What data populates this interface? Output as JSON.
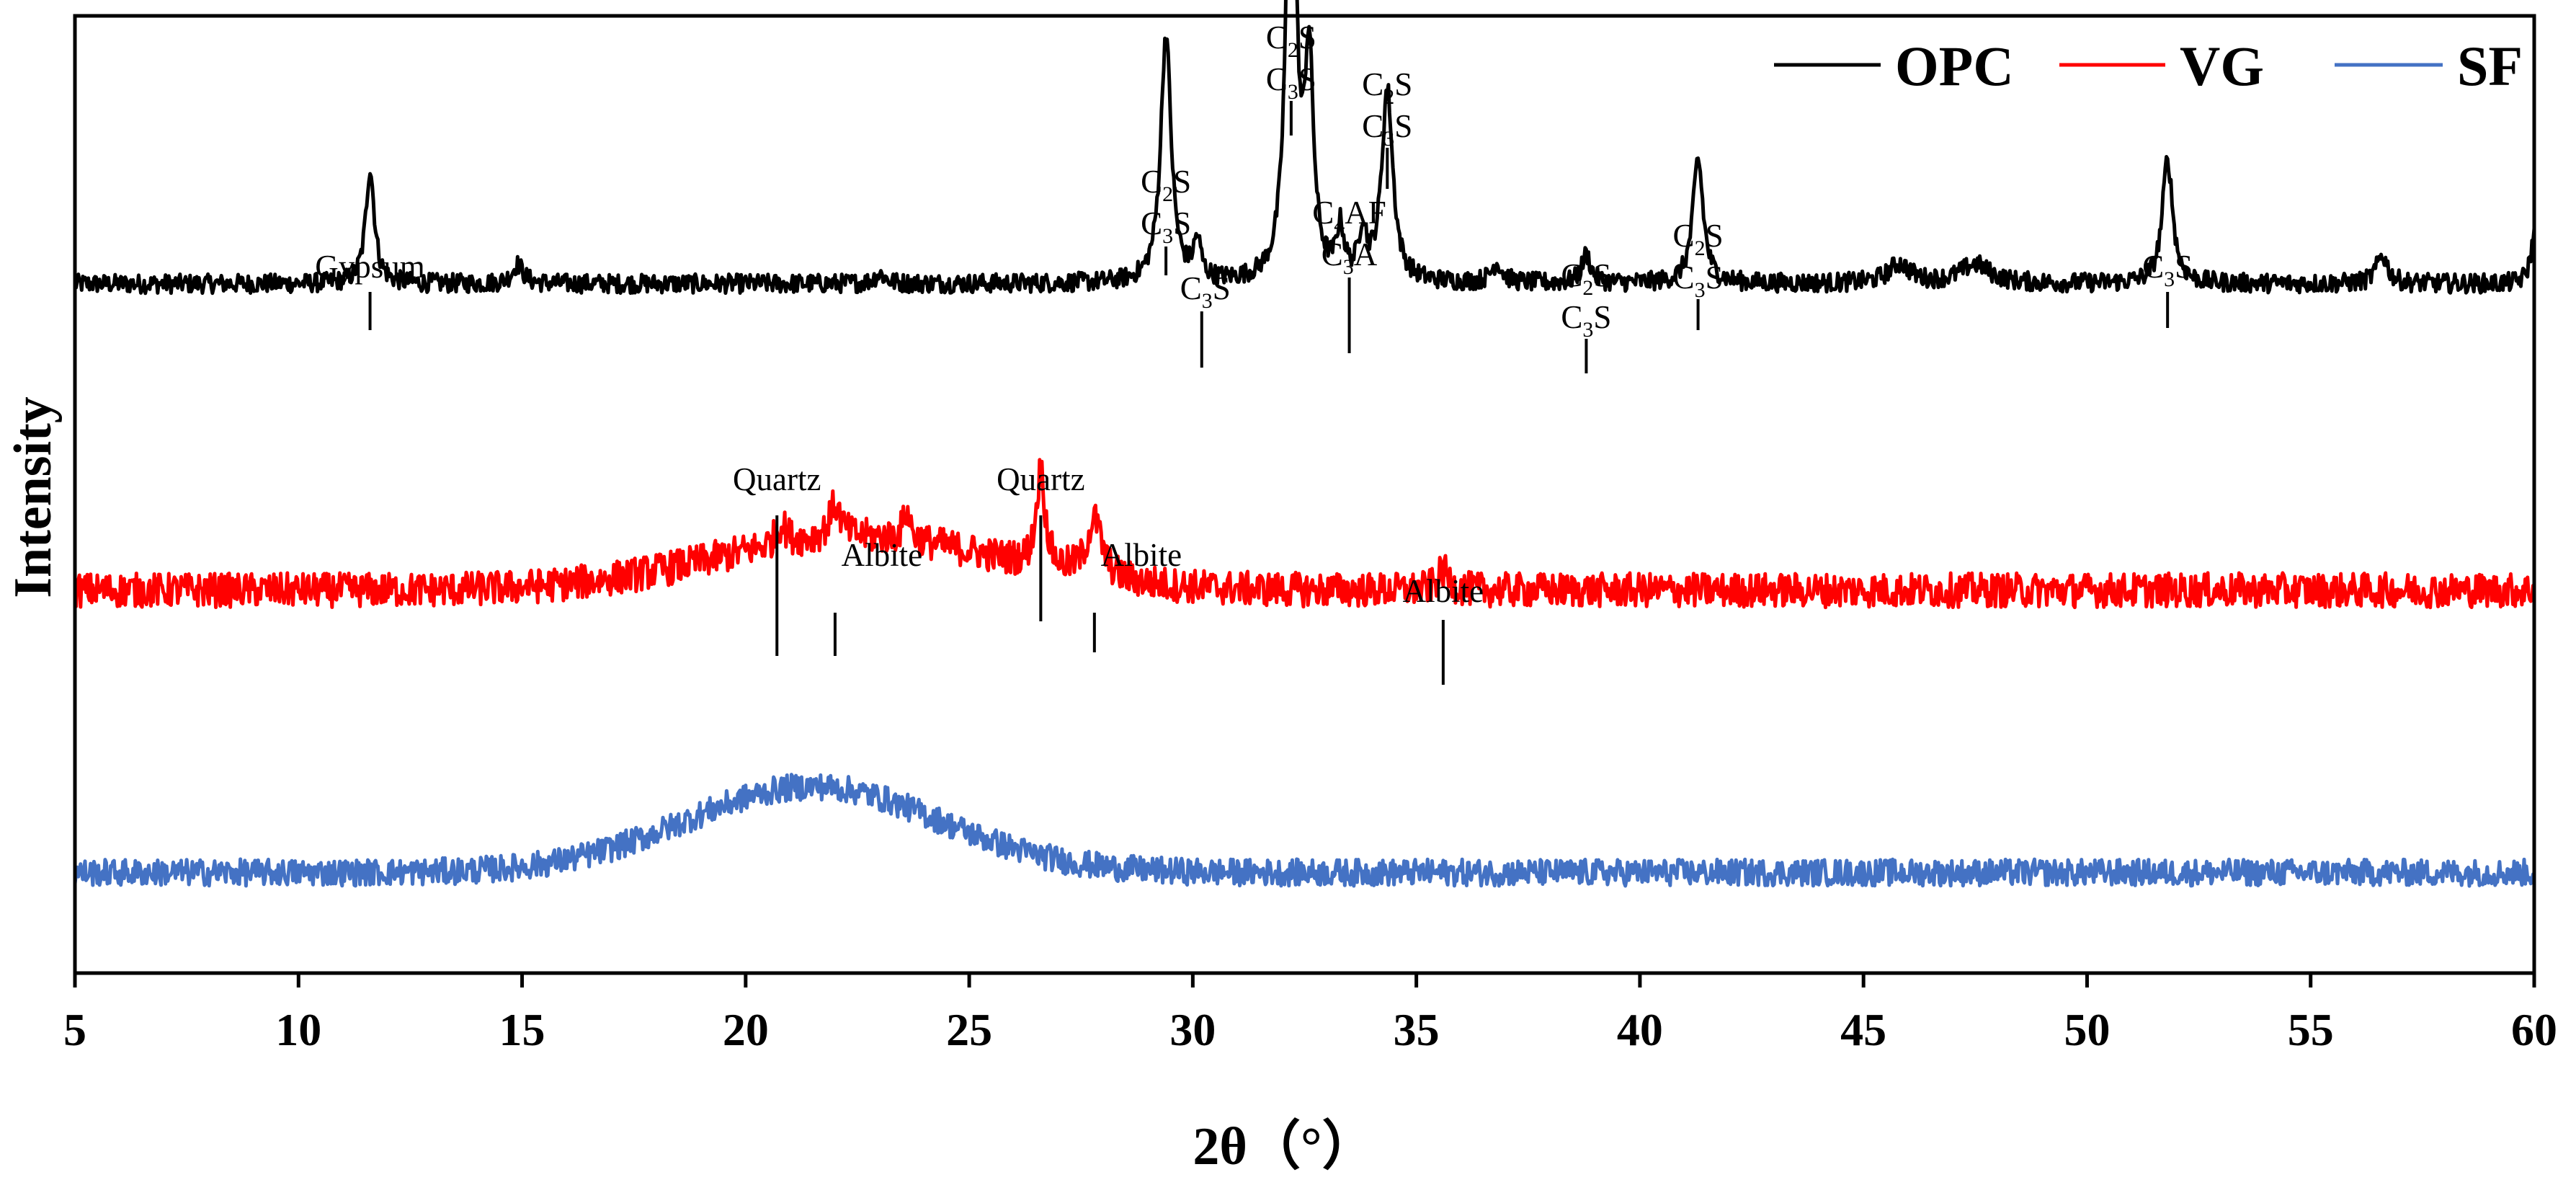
{
  "chart_data": {
    "type": "line",
    "title": "",
    "xlabel": "2θ（°）",
    "ylabel": "Intensity",
    "xlim": [
      5,
      60
    ],
    "xticks": [
      "5",
      "10",
      "15",
      "20",
      "25",
      "30",
      "35",
      "40",
      "45",
      "50",
      "55",
      "60"
    ],
    "yticks": [],
    "legend": {
      "position": "top-right"
    },
    "series": [
      {
        "name": "OPC",
        "color": "#000000",
        "baseline": 0.72,
        "noise": 0.01,
        "peaks": [
          {
            "x": 11.6,
            "height": 0.12,
            "width": 0.12
          },
          {
            "x": 14.9,
            "height": 0.02,
            "width": 0.15
          },
          {
            "x": 23.0,
            "height": 0.01,
            "width": 0.15
          },
          {
            "x": 29.4,
            "height": 0.26,
            "width": 0.14
          },
          {
            "x": 30.1,
            "height": 0.04,
            "width": 0.1
          },
          {
            "x": 32.2,
            "height": 0.56,
            "width": 0.12
          },
          {
            "x": 32.6,
            "height": 0.22,
            "width": 0.12
          },
          {
            "x": 33.3,
            "height": 0.05,
            "width": 0.1
          },
          {
            "x": 33.8,
            "height": 0.05,
            "width": 0.1
          },
          {
            "x": 34.35,
            "height": 0.2,
            "width": 0.15
          },
          {
            "x": 36.8,
            "height": 0.02,
            "width": 0.15
          },
          {
            "x": 38.8,
            "height": 0.03,
            "width": 0.12
          },
          {
            "x": 41.3,
            "height": 0.13,
            "width": 0.14
          },
          {
            "x": 45.8,
            "height": 0.02,
            "width": 0.3
          },
          {
            "x": 47.5,
            "height": 0.02,
            "width": 0.4
          },
          {
            "x": 51.8,
            "height": 0.13,
            "width": 0.14
          },
          {
            "x": 56.6,
            "height": 0.03,
            "width": 0.15
          },
          {
            "x": 60.0,
            "height": 0.05,
            "width": 0.1
          }
        ]
      },
      {
        "name": "VG",
        "color": "#ff0000",
        "baseline": 0.4,
        "noise": 0.018,
        "hump": {
          "x": 22.5,
          "height": 0.055,
          "width": 4.5
        },
        "peaks": [
          {
            "x": 20.8,
            "height": 0.02,
            "width": 0.15
          },
          {
            "x": 22.0,
            "height": 0.035,
            "width": 0.15
          },
          {
            "x": 23.6,
            "height": 0.03,
            "width": 0.1
          },
          {
            "x": 26.6,
            "height": 0.1,
            "width": 0.12
          },
          {
            "x": 27.8,
            "height": 0.06,
            "width": 0.2
          },
          {
            "x": 35.6,
            "height": 0.02,
            "width": 0.15
          }
        ]
      },
      {
        "name": "SF",
        "color": "#4472c4",
        "baseline": 0.105,
        "noise": 0.014,
        "hump": {
          "x": 21.5,
          "height": 0.09,
          "width": 4.0
        },
        "peaks": []
      }
    ],
    "annotations": [
      {
        "x": 11.6,
        "base": "Gypsum",
        "sub": "",
        "rest": "",
        "lines": 1
      },
      {
        "x": 29.4,
        "lines": 2,
        "text": [
          [
            "C",
            "2",
            "S"
          ],
          [
            "C",
            "3",
            "S"
          ]
        ]
      },
      {
        "x": 30.2,
        "lines": 1,
        "text": [
          [
            "C",
            "3",
            "S"
          ]
        ]
      },
      {
        "x": 32.2,
        "lines": 2,
        "text": [
          [
            "C",
            "2",
            "S"
          ],
          [
            "C",
            "3",
            "S"
          ]
        ]
      },
      {
        "x": 33.5,
        "lines": 2,
        "text": [
          [
            "C",
            "4",
            "AF"
          ],
          [
            "C",
            "3",
            "A"
          ]
        ]
      },
      {
        "x": 34.35,
        "lines": 2,
        "text": [
          [
            "C",
            "2",
            "S"
          ],
          [
            "C",
            "3",
            "S"
          ]
        ]
      },
      {
        "x": 38.8,
        "lines": 2,
        "text": [
          [
            "C",
            "2",
            "S"
          ],
          [
            "C",
            "3",
            "S"
          ]
        ]
      },
      {
        "x": 41.3,
        "lines": 2,
        "text": [
          [
            "C",
            "2",
            "S"
          ],
          [
            "C",
            "3",
            "S"
          ]
        ]
      },
      {
        "x": 51.8,
        "lines": 1,
        "text": [
          [
            "C",
            "3",
            "S"
          ]
        ]
      },
      {
        "x": 20.7,
        "lines": 1,
        "text": [
          [
            "Quartz",
            "",
            ""
          ]
        ]
      },
      {
        "x": 22.0,
        "lines": 1,
        "text": [
          [
            "Albite",
            "",
            ""
          ]
        ]
      },
      {
        "x": 26.6,
        "lines": 1,
        "text": [
          [
            "Quartz",
            "",
            ""
          ]
        ]
      },
      {
        "x": 27.8,
        "lines": 1,
        "text": [
          [
            "Albite",
            "",
            ""
          ]
        ]
      },
      {
        "x": 35.6,
        "lines": 1,
        "text": [
          [
            "Albite",
            "",
            ""
          ]
        ]
      }
    ]
  }
}
